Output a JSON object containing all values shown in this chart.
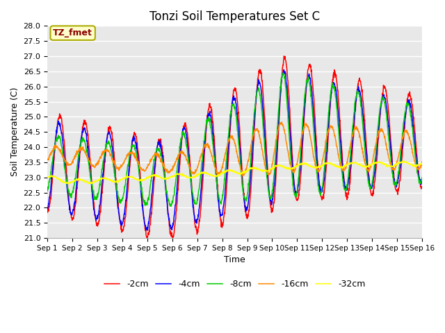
{
  "title": "Tonzi Soil Temperatures Set C",
  "xlabel": "Time",
  "ylabel": "Soil Temperature (C)",
  "annotation": "TZ_fmet",
  "ylim": [
    21.0,
    28.0
  ],
  "yticks": [
    21.0,
    21.5,
    22.0,
    22.5,
    23.0,
    23.5,
    24.0,
    24.5,
    25.0,
    25.5,
    26.0,
    26.5,
    27.0,
    27.5,
    28.0
  ],
  "xtick_labels": [
    "Sep 1",
    "Sep 2",
    "Sep 3",
    "Sep 4",
    "Sep 5",
    "Sep 6",
    "Sep 7",
    "Sep 8",
    "Sep 9",
    "Sep 10",
    "Sep 11",
    "Sep 12",
    "Sep 13",
    "Sep 14",
    "Sep 15",
    "Sep 16"
  ],
  "bg_color": "#e8e8e8",
  "line_colors": {
    "-2cm": "#ff0000",
    "-4cm": "#0000ff",
    "-8cm": "#00cc00",
    "-16cm": "#ff8800",
    "-32cm": "#ffff00"
  },
  "legend_entries": [
    "-2cm",
    "-4cm",
    "-8cm",
    "-16cm",
    "-32cm"
  ]
}
